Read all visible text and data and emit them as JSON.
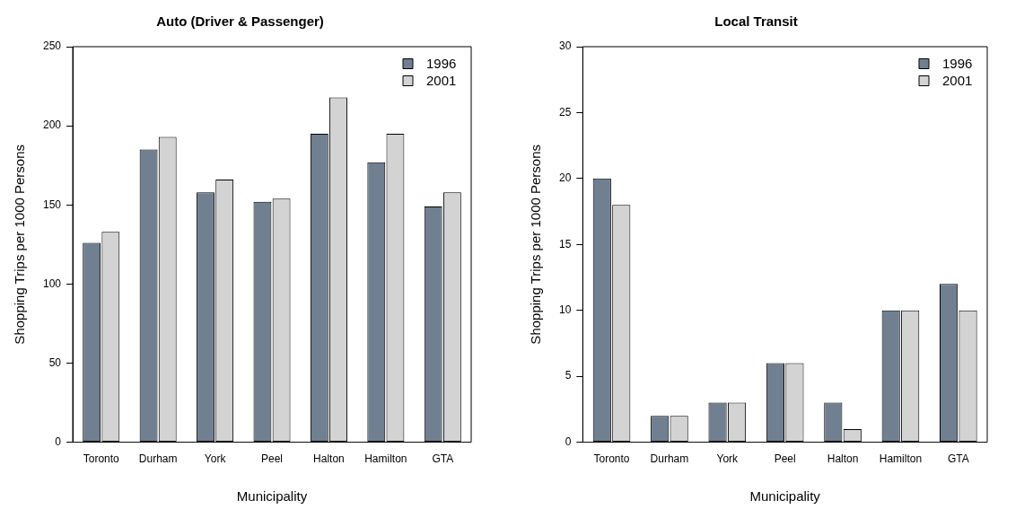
{
  "chart_data": [
    {
      "type": "bar",
      "title": "Auto (Driver & Passenger)",
      "xlabel": "Municipality",
      "ylabel": "Shopping Trips per 1000 Persons",
      "categories": [
        "Toronto",
        "Durham",
        "York",
        "Peel",
        "Halton",
        "Hamilton",
        "GTA"
      ],
      "series": [
        {
          "name": "1996",
          "color": "#708090",
          "values": [
            126,
            185,
            158,
            152,
            195,
            177,
            149
          ]
        },
        {
          "name": "2001",
          "color": "#d3d3d3",
          "values": [
            133,
            193,
            166,
            154,
            218,
            195,
            158
          ]
        }
      ],
      "ylim": [
        0,
        250
      ],
      "yticks": [
        0,
        50,
        100,
        150,
        200,
        250
      ],
      "grid": false,
      "legend": "top right"
    },
    {
      "type": "bar",
      "title": "Local Transit",
      "xlabel": "Municipality",
      "ylabel": "Shopping Trips per 1000 Persons",
      "categories": [
        "Toronto",
        "Durham",
        "York",
        "Peel",
        "Halton",
        "Hamilton",
        "GTA"
      ],
      "series": [
        {
          "name": "1996",
          "color": "#708090",
          "values": [
            20,
            2,
            3,
            6,
            3,
            10,
            12
          ]
        },
        {
          "name": "2001",
          "color": "#d3d3d3",
          "values": [
            18,
            2,
            3,
            6,
            1,
            10,
            10
          ]
        }
      ],
      "ylim": [
        0,
        30
      ],
      "yticks": [
        0,
        5,
        10,
        15,
        20,
        25,
        30
      ],
      "grid": false,
      "legend": "top right"
    }
  ]
}
